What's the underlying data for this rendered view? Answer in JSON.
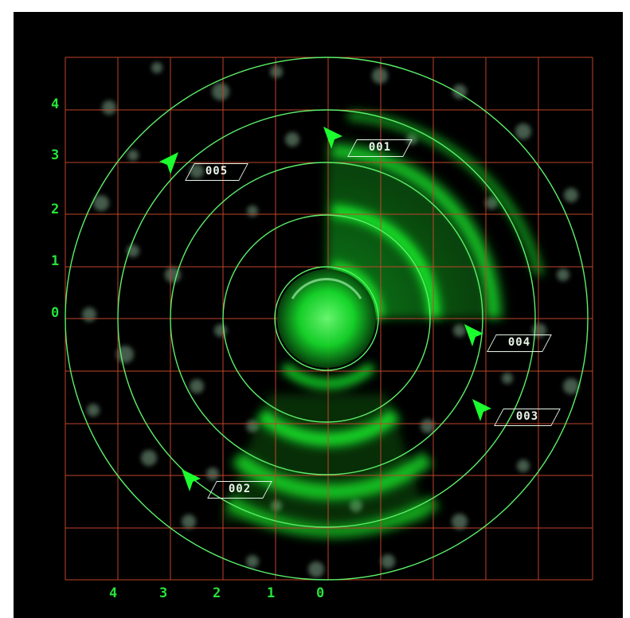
{
  "radar": {
    "colors": {
      "background": "#000000",
      "grid": "#c0452a",
      "ring": "#5cf06a",
      "sweep": "#1bff2f",
      "label": "#27e33a",
      "tag": "#e8f5e8"
    },
    "y_axis_labels": [
      "4",
      "3",
      "2",
      "1",
      "0"
    ],
    "x_axis_labels": [
      "4",
      "3",
      "2",
      "1",
      "0"
    ],
    "targets": [
      {
        "id": "001",
        "icon": "aircraft-icon"
      },
      {
        "id": "005",
        "icon": "aircraft-icon"
      },
      {
        "id": "004",
        "icon": "aircraft-icon"
      },
      {
        "id": "003",
        "icon": "aircraft-icon"
      },
      {
        "id": "002",
        "icon": "aircraft-icon"
      }
    ]
  }
}
